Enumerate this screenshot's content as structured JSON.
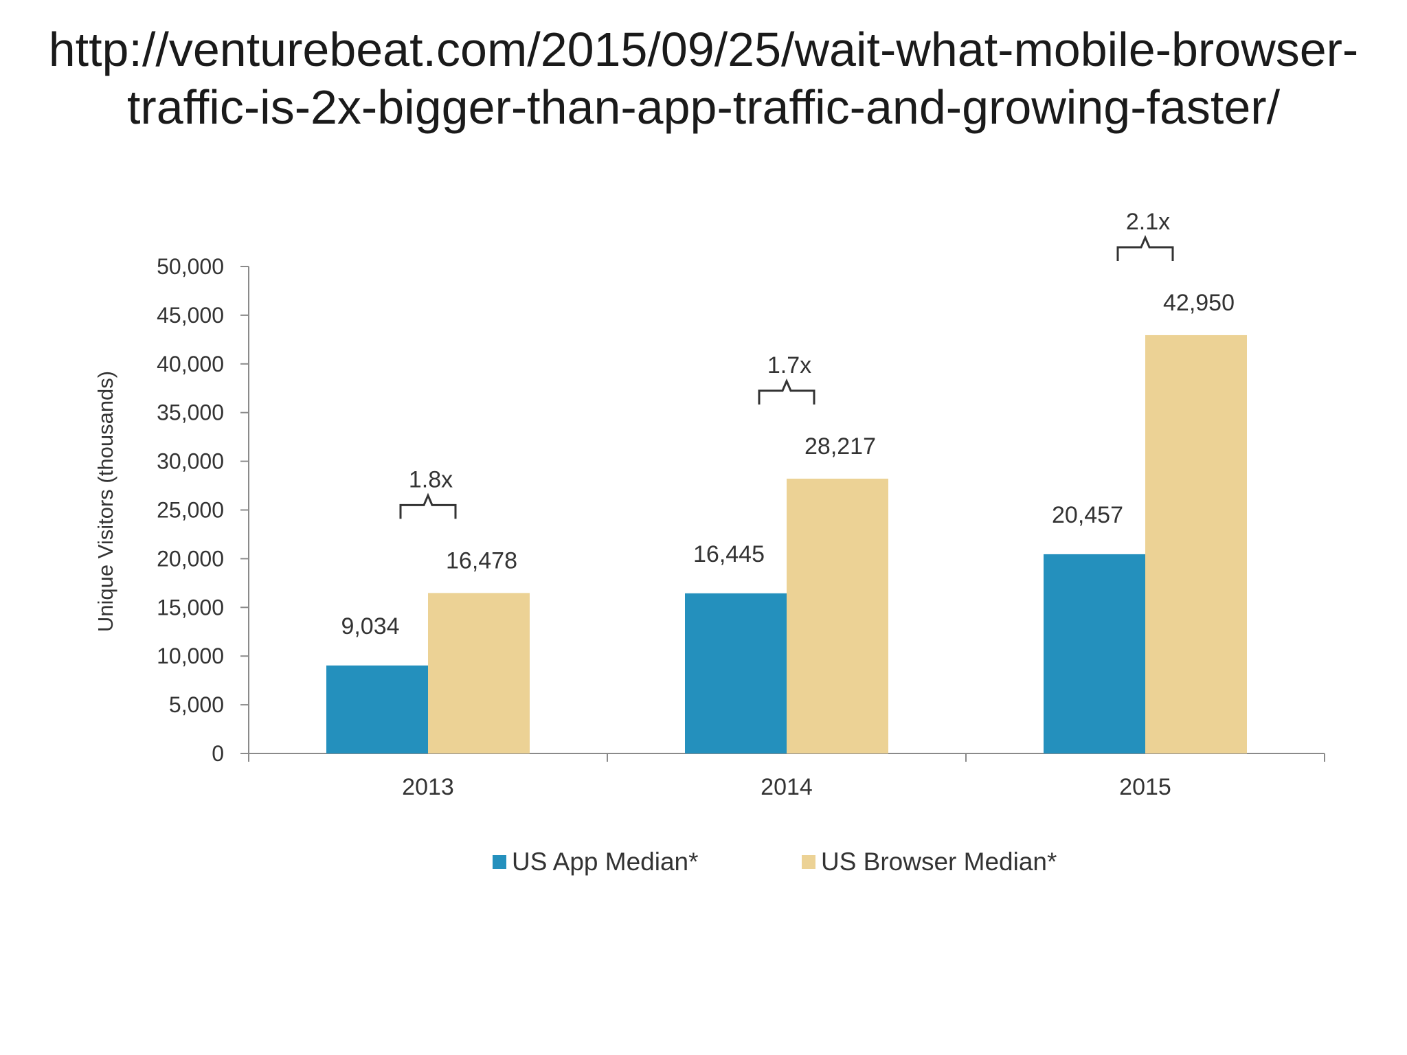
{
  "header": {
    "url_line_1": "http://venturebeat.com/2015/09/25/wait-what-mobile-browser-",
    "url_line_2": "traffic-is-2x-bigger-than-app-traffic-and-growing-faster/"
  },
  "chart_data": {
    "type": "bar",
    "categories": [
      "2013",
      "2014",
      "2015"
    ],
    "series": [
      {
        "name": "US App Median*",
        "values": [
          9034,
          16445,
          20457
        ],
        "labels": [
          "9,034",
          "16,445",
          "20,457"
        ],
        "color": "#2490bd"
      },
      {
        "name": "US Browser Median*",
        "values": [
          16478,
          28217,
          42950
        ],
        "labels": [
          "16,478",
          "28,217",
          "42,950"
        ],
        "color": "#ecd295"
      }
    ],
    "ratios": [
      "1.8x",
      "1.7x",
      "2.1x"
    ],
    "title": "",
    "xlabel": "",
    "ylabel": "Unique Visitors (thousands)",
    "ylim": [
      0,
      50000
    ],
    "yticks": [
      0,
      5000,
      10000,
      15000,
      20000,
      25000,
      30000,
      35000,
      40000,
      45000,
      50000
    ],
    "ytick_labels": [
      "0",
      "5,000",
      "10,000",
      "15,000",
      "20,000",
      "25,000",
      "30,000",
      "35,000",
      "40,000",
      "45,000",
      "50,000"
    ],
    "grid": false,
    "legend_position": "bottom-center"
  }
}
